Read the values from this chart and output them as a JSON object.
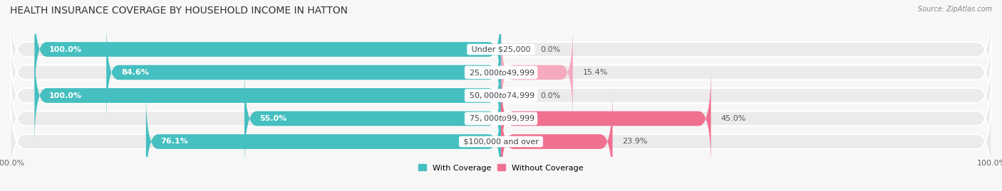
{
  "title": "HEALTH INSURANCE COVERAGE BY HOUSEHOLD INCOME IN HATTON",
  "source": "Source: ZipAtlas.com",
  "categories": [
    "Under $25,000",
    "$25,000 to $49,999",
    "$50,000 to $74,999",
    "$75,000 to $99,999",
    "$100,000 and over"
  ],
  "with_coverage": [
    100.0,
    84.6,
    100.0,
    55.0,
    76.1
  ],
  "without_coverage": [
    0.0,
    15.4,
    0.0,
    45.0,
    23.9
  ],
  "color_with": "#45BFC0",
  "color_without": "#F07090",
  "color_with_light": "#A8DFE0",
  "color_without_light": "#F5AABF",
  "bg_row": "#EBEBEB",
  "page_bg": "#F7F7F7",
  "title_fontsize": 10,
  "label_fontsize": 8,
  "tick_fontsize": 8,
  "bar_height": 0.62,
  "total_width": 100
}
